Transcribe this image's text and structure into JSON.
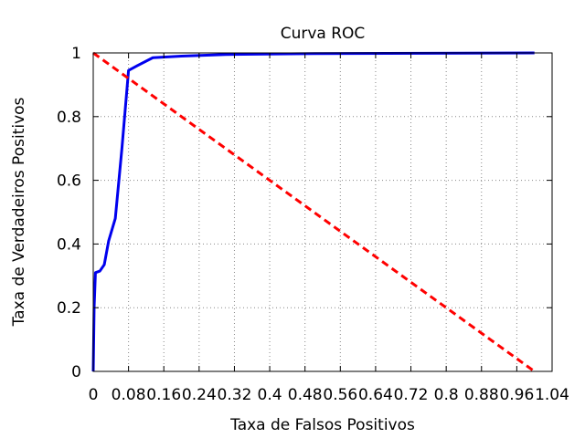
{
  "chart_data": {
    "type": "line",
    "title": "Curva ROC",
    "xlabel": "Taxa de Falsos Positivos",
    "ylabel": "Taxa de Verdadeiros Positivos",
    "xlim": [
      0,
      1.04
    ],
    "ylim": [
      0,
      1
    ],
    "xticks": [
      "0",
      "0.08",
      "0.16",
      "0.24",
      "0.32",
      "0.4",
      "0.48",
      "0.56",
      "0.64",
      "0.72",
      "0.8",
      "0.88",
      "0.96",
      "1.04"
    ],
    "yticks": [
      "0",
      "0.2",
      "0.4",
      "0.6",
      "0.8",
      "1"
    ],
    "grid": true,
    "series": [
      {
        "color": "#0000ee",
        "style": "solid",
        "x": [
          0,
          0.002,
          0.005,
          0.015,
          0.025,
          0.035,
          0.05,
          0.065,
          0.08,
          0.1,
          0.135,
          0.2,
          0.3,
          0.5,
          1.0
        ],
        "y": [
          0,
          0.2,
          0.31,
          0.315,
          0.335,
          0.41,
          0.48,
          0.7,
          0.945,
          0.96,
          0.985,
          0.99,
          0.995,
          0.998,
          1.0
        ]
      },
      {
        "color": "#ff0000",
        "style": "dashed",
        "x": [
          0,
          1.0
        ],
        "y": [
          1,
          0
        ]
      }
    ]
  }
}
